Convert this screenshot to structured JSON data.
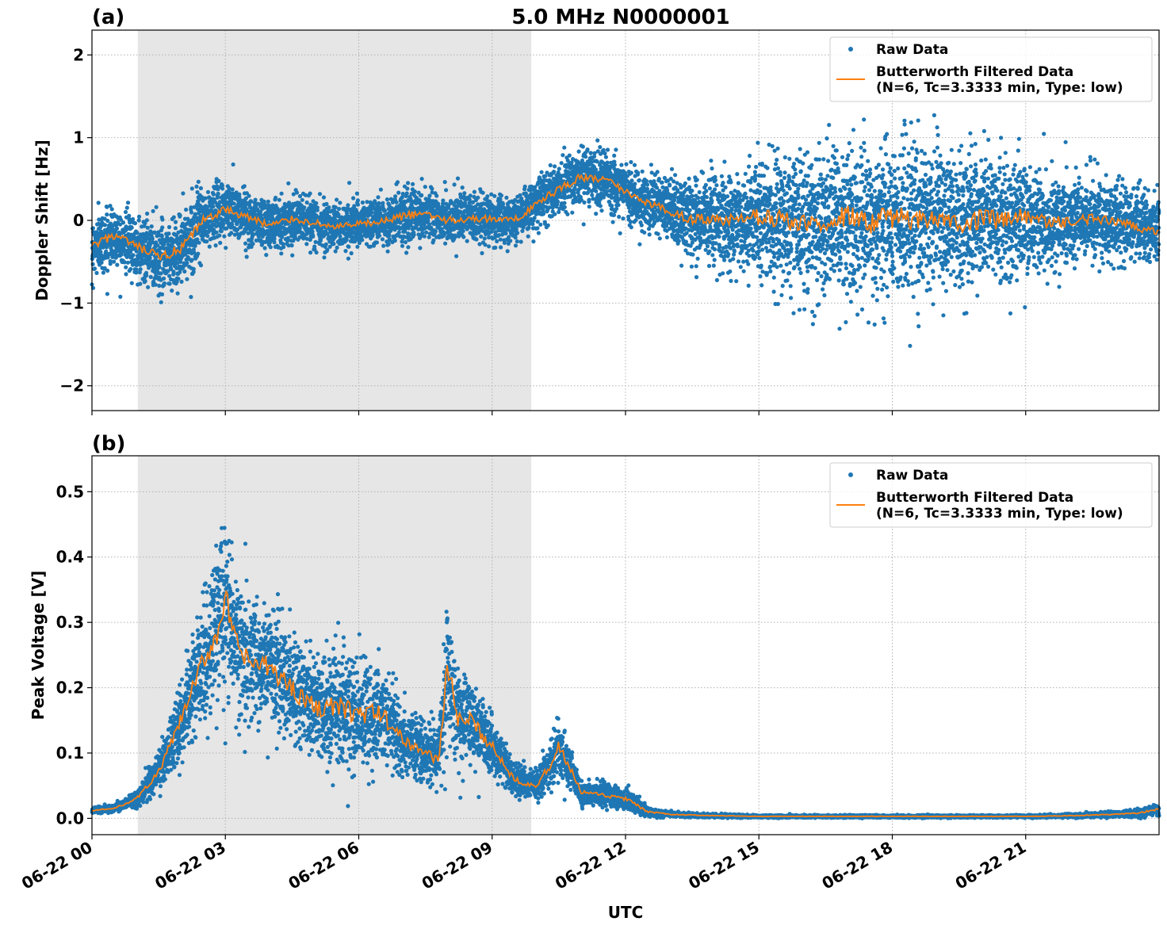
{
  "figure": {
    "title": "5.0 MHz N0000001",
    "xlabel": "UTC"
  },
  "legend": {
    "raw_label": "Raw Data",
    "filtered_label_line1": "Butterworth Filtered Data",
    "filtered_label_line2": "(N=6, Tc=3.3333 min, Type: low)",
    "placement": "upper right"
  },
  "colors": {
    "raw": "#1f77b4",
    "filtered": "#ff7f0e",
    "shade": "#e6e6e6",
    "grid": "#b0b0b0"
  },
  "x_ticks": [
    "06-22 00",
    "06-22 03",
    "06-22 06",
    "06-22 09",
    "06-22 12",
    "06-22 15",
    "06-22 18",
    "06-22 21"
  ],
  "chart_data": [
    {
      "type": "scatter",
      "panel": "(a)",
      "title": "5.0 MHz N0000001",
      "xlabel": "",
      "ylabel": "Doppler Shift [Hz]",
      "x_unit": "hours UTC on 06-22",
      "xlim": [
        0,
        24
      ],
      "ylim": [
        -2.3,
        2.3
      ],
      "yticks": [
        2,
        1,
        0,
        -1,
        -2
      ],
      "ytick_labels": [
        "2",
        "1",
        "0",
        "−1",
        "−2"
      ],
      "grid": true,
      "legend": "top-right",
      "shaded_interval_hours": [
        1.03,
        9.88
      ],
      "series": [
        {
          "name": "Butterworth Filtered Data",
          "kind": "line",
          "x": [
            0,
            0.5,
            1.0,
            1.5,
            2.0,
            2.5,
            3.0,
            3.5,
            4.0,
            4.5,
            5.0,
            5.5,
            6.0,
            6.5,
            7.0,
            7.5,
            8.0,
            8.5,
            9.0,
            9.5,
            10.0,
            10.5,
            11.0,
            11.5,
            12.0,
            12.5,
            13.0,
            13.5,
            14.0,
            14.5,
            15.0,
            15.5,
            16.0,
            16.5,
            17.0,
            17.5,
            18.0,
            18.5,
            19.0,
            19.5,
            20.0,
            20.5,
            21.0,
            21.5,
            22.0,
            22.5,
            23.0,
            23.5,
            24.0
          ],
          "y": [
            -0.32,
            -0.18,
            -0.32,
            -0.45,
            -0.36,
            0.0,
            0.13,
            0.04,
            -0.06,
            0.02,
            -0.03,
            -0.08,
            -0.05,
            -0.02,
            0.05,
            0.08,
            0.0,
            0.02,
            0.02,
            0.0,
            0.2,
            0.38,
            0.52,
            0.5,
            0.35,
            0.22,
            0.1,
            0.02,
            0.0,
            -0.02,
            0.05,
            0.02,
            -0.06,
            0.0,
            0.05,
            -0.04,
            0.04,
            0.0,
            0.06,
            -0.05,
            0.03,
            0.0,
            0.05,
            -0.05,
            0.0,
            0.02,
            -0.03,
            -0.08,
            -0.12
          ],
          "noise_amplitude": [
            0.3,
            0.3,
            0.32,
            0.4,
            0.38,
            0.3,
            0.32,
            0.28,
            0.25,
            0.25,
            0.25,
            0.25,
            0.25,
            0.25,
            0.28,
            0.28,
            0.25,
            0.25,
            0.25,
            0.25,
            0.25,
            0.28,
            0.3,
            0.3,
            0.3,
            0.32,
            0.35,
            0.4,
            0.45,
            0.52,
            0.6,
            0.65,
            0.7,
            0.75,
            0.8,
            0.8,
            0.8,
            0.78,
            0.75,
            0.72,
            0.7,
            0.65,
            0.6,
            0.5,
            0.45,
            0.4,
            0.38,
            0.35,
            0.35
          ]
        },
        {
          "name": "Raw Data",
          "kind": "scatter"
        }
      ]
    },
    {
      "type": "scatter",
      "panel": "(b)",
      "title": "",
      "xlabel": "UTC",
      "ylabel": "Peak Voltage [V]",
      "x_unit": "hours UTC on 06-22",
      "xlim": [
        0,
        24
      ],
      "ylim": [
        -0.025,
        0.555
      ],
      "yticks": [
        0.5,
        0.4,
        0.3,
        0.2,
        0.1,
        0.0
      ],
      "ytick_labels": [
        "0.5",
        "0.4",
        "0.3",
        "0.2",
        "0.1",
        "0.0"
      ],
      "grid": true,
      "legend": "top-right",
      "shaded_interval_hours": [
        1.03,
        9.88
      ],
      "series": [
        {
          "name": "Butterworth Filtered Data",
          "kind": "line",
          "x": [
            0,
            0.5,
            1.0,
            1.5,
            2.0,
            2.5,
            2.8,
            3.0,
            3.2,
            3.5,
            4.0,
            4.5,
            5.0,
            5.5,
            6.0,
            6.5,
            7.0,
            7.5,
            7.8,
            8.0,
            8.2,
            8.5,
            9.0,
            9.5,
            10.0,
            10.3,
            10.5,
            10.8,
            11.0,
            11.5,
            12.0,
            12.5,
            13.0,
            14.0,
            15.0,
            16.0,
            17.0,
            18.0,
            19.0,
            20.0,
            21.0,
            22.0,
            23.0,
            23.5,
            24.0
          ],
          "y": [
            0.012,
            0.015,
            0.03,
            0.07,
            0.15,
            0.24,
            0.28,
            0.34,
            0.27,
            0.24,
            0.23,
            0.2,
            0.17,
            0.17,
            0.16,
            0.16,
            0.12,
            0.1,
            0.09,
            0.24,
            0.15,
            0.15,
            0.11,
            0.06,
            0.05,
            0.08,
            0.11,
            0.07,
            0.04,
            0.035,
            0.03,
            0.01,
            0.006,
            0.004,
            0.003,
            0.003,
            0.003,
            0.003,
            0.003,
            0.003,
            0.003,
            0.004,
            0.006,
            0.008,
            0.014
          ],
          "noise_amplitude": [
            0.005,
            0.006,
            0.012,
            0.03,
            0.06,
            0.1,
            0.12,
            0.14,
            0.12,
            0.1,
            0.1,
            0.1,
            0.08,
            0.1,
            0.09,
            0.08,
            0.06,
            0.05,
            0.05,
            0.12,
            0.07,
            0.07,
            0.05,
            0.03,
            0.025,
            0.04,
            0.05,
            0.03,
            0.02,
            0.02,
            0.02,
            0.008,
            0.004,
            0.003,
            0.002,
            0.002,
            0.002,
            0.002,
            0.002,
            0.002,
            0.002,
            0.003,
            0.004,
            0.006,
            0.01
          ]
        },
        {
          "name": "Raw Data",
          "kind": "scatter"
        }
      ]
    }
  ]
}
